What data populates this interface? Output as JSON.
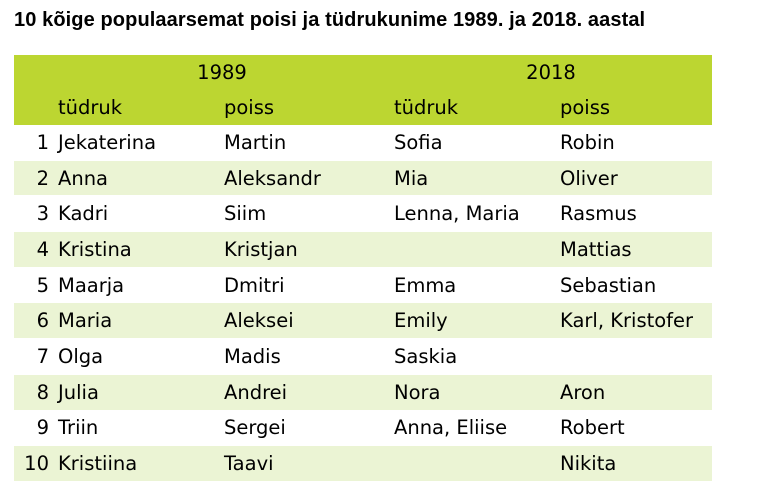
{
  "title": "10 kõige populaarsemat poisi ja tüdrukunime 1989. ja 2018. aastal",
  "header": {
    "year_1": "1989",
    "year_2": "2018",
    "girl": "tüdruk",
    "boy": "poiss"
  },
  "rows": [
    {
      "rank": "1",
      "girl_1989": "Jekaterina",
      "boy_1989": "Martin",
      "girl_2018": "Sofia",
      "boy_2018": "Robin"
    },
    {
      "rank": "2",
      "girl_1989": "Anna",
      "boy_1989": "Aleksandr",
      "girl_2018": "Mia",
      "boy_2018": "Oliver"
    },
    {
      "rank": "3",
      "girl_1989": "Kadri",
      "boy_1989": "Siim",
      "girl_2018": "Lenna, Maria",
      "boy_2018": "Rasmus"
    },
    {
      "rank": "4",
      "girl_1989": "Kristina",
      "boy_1989": "Kristjan",
      "girl_2018": "",
      "boy_2018": "Mattias"
    },
    {
      "rank": "5",
      "girl_1989": "Maarja",
      "boy_1989": "Dmitri",
      "girl_2018": "Emma",
      "boy_2018": "Sebastian"
    },
    {
      "rank": "6",
      "girl_1989": "Maria",
      "boy_1989": "Aleksei",
      "girl_2018": "Emily",
      "boy_2018": "Karl, Kristofer"
    },
    {
      "rank": "7",
      "girl_1989": "Olga",
      "boy_1989": "Madis",
      "girl_2018": "Saskia",
      "boy_2018": ""
    },
    {
      "rank": "8",
      "girl_1989": "Julia",
      "boy_1989": "Andrei",
      "girl_2018": "Nora",
      "boy_2018": "Aron"
    },
    {
      "rank": "9",
      "girl_1989": "Triin",
      "boy_1989": "Sergei",
      "girl_2018": "Anna, Eliise",
      "boy_2018": "Robert"
    },
    {
      "rank": "10",
      "girl_1989": "Kristiina",
      "boy_1989": "Taavi",
      "girl_2018": "",
      "boy_2018": "Nikita"
    }
  ],
  "colors": {
    "header_bg": "#bcd631",
    "shaded_row_bg": "#ebf4d4"
  }
}
